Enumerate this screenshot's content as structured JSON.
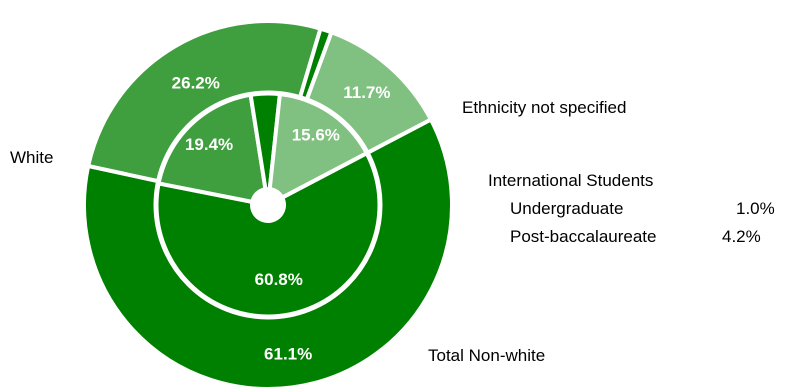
{
  "chart_data": {
    "type": "pie",
    "title": "",
    "colors": {
      "white": "#008000",
      "nonwhite": "#3f9f3f",
      "not_specified": "#80c080",
      "international": "#008000",
      "separator": "#ffffff"
    },
    "outer_ring": [
      {
        "label": "White",
        "value": 61.1,
        "value_label": "61.1%"
      },
      {
        "label": "Total Non-white",
        "value": 26.2,
        "value_label": "26.2%"
      },
      {
        "label": "International Students",
        "value": 1.0,
        "value_label": ""
      },
      {
        "label": "Ethnicity not specified",
        "value": 11.7,
        "value_label": "11.7%"
      }
    ],
    "inner_ring": [
      {
        "label": "White",
        "value": 60.8,
        "value_label": "60.8%"
      },
      {
        "label": "Total Non-white",
        "value": 19.4,
        "value_label": "19.4%"
      },
      {
        "label": "International Students",
        "value": 4.2,
        "value_label": ""
      },
      {
        "label": "Ethnicity not specified",
        "value": 15.6,
        "value_label": "15.6%"
      }
    ]
  },
  "labels": {
    "white": "White",
    "not_specified": "Ethnicity not specified",
    "nonwhite": "Total Non-white",
    "international_title": "International Students",
    "undergraduate_label": "Undergraduate",
    "undergraduate_value": "1.0%",
    "postbacc_label": "Post-baccalaureate",
    "postbacc_value": "4.2%"
  }
}
